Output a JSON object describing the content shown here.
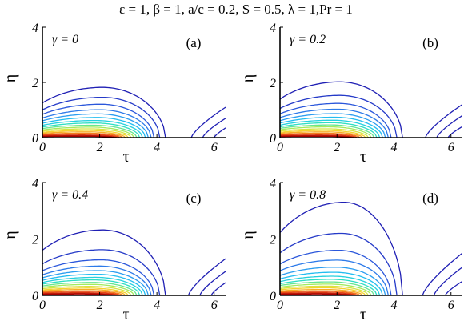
{
  "figure_title": "ε = 1, β = 1, a/c = 0.2, S = 0.5, λ = 1,Pr = 1",
  "colors": {
    "outer_contour": "#1f1fb4",
    "axis": "#000000",
    "colormap": [
      "#1f1fb4",
      "#2a4fd8",
      "#2f8ef0",
      "#20c8f0",
      "#30e0c0",
      "#a0ec60",
      "#f4e030",
      "#f89a20",
      "#e43c14",
      "#a00000"
    ]
  },
  "chart_data": [
    {
      "type": "contour",
      "panel_label": "(a)",
      "gamma_label": "γ = 0",
      "xlabel": "τ",
      "ylabel": "η",
      "xticks": [
        "0",
        "2",
        "4",
        "6"
      ],
      "yticks": [
        "0",
        "2",
        "4"
      ],
      "xlim": [
        0,
        6.4
      ],
      "ylim": [
        0,
        4
      ],
      "left_lobe": {
        "x_start": 0,
        "center_x": 2.1,
        "closing_x": [
          4.3,
          4.1,
          3.9,
          3.8,
          3.7,
          3.6,
          3.5,
          3.4,
          3.3,
          3.2,
          3.1,
          3.0,
          2.9,
          2.8,
          2.7,
          2.6,
          2.5
        ],
        "peak_height": [
          1.82,
          1.46,
          1.21,
          1.01,
          0.86,
          0.73,
          0.62,
          0.53,
          0.45,
          0.38,
          0.32,
          0.26,
          0.21,
          0.16,
          0.12,
          0.08,
          0.05
        ]
      },
      "right_lobe": {
        "x_start": [
          5.2,
          5.6,
          6.0
        ],
        "x_end": 6.4,
        "height_at_end": [
          1.1,
          0.7,
          0.35
        ]
      }
    },
    {
      "type": "contour",
      "panel_label": "(b)",
      "gamma_label": "γ = 0.2",
      "xlabel": "τ",
      "ylabel": "η",
      "xticks": [
        "0",
        "2",
        "4",
        "6"
      ],
      "yticks": [
        "0",
        "2",
        "4"
      ],
      "xlim": [
        0,
        6.4
      ],
      "ylim": [
        0,
        4
      ],
      "left_lobe": {
        "x_start": 0,
        "center_x": 2.1,
        "closing_x": [
          4.3,
          4.1,
          3.9,
          3.8,
          3.7,
          3.6,
          3.5,
          3.4,
          3.3,
          3.2,
          3.1,
          3.0,
          2.9,
          2.8,
          2.7,
          2.6,
          2.5
        ],
        "peak_height": [
          2.02,
          1.53,
          1.24,
          1.03,
          0.87,
          0.74,
          0.63,
          0.54,
          0.46,
          0.39,
          0.32,
          0.26,
          0.21,
          0.16,
          0.12,
          0.08,
          0.05
        ]
      },
      "right_lobe": {
        "x_start": [
          5.1,
          5.5,
          5.9
        ],
        "x_end": 6.4,
        "height_at_end": [
          1.2,
          0.8,
          0.4
        ]
      }
    },
    {
      "type": "contour",
      "panel_label": "(c)",
      "gamma_label": "γ = 0.4",
      "xlabel": "τ",
      "ylabel": "η",
      "xticks": [
        "0",
        "2",
        "4",
        "6"
      ],
      "yticks": [
        "0",
        "2",
        "4"
      ],
      "xlim": [
        0,
        6.4
      ],
      "ylim": [
        0,
        4
      ],
      "left_lobe": {
        "x_start": 0,
        "center_x": 2.1,
        "closing_x": [
          4.3,
          4.1,
          3.9,
          3.8,
          3.7,
          3.6,
          3.5,
          3.4,
          3.3,
          3.2,
          3.1,
          3.0,
          2.9,
          2.8,
          2.7,
          2.6,
          2.5
        ],
        "peak_height": [
          2.32,
          1.62,
          1.26,
          1.04,
          0.88,
          0.75,
          0.64,
          0.55,
          0.46,
          0.39,
          0.32,
          0.26,
          0.21,
          0.16,
          0.12,
          0.08,
          0.05
        ]
      },
      "right_lobe": {
        "x_start": [
          5.1,
          5.5,
          5.9
        ],
        "x_end": 6.4,
        "height_at_end": [
          1.3,
          0.85,
          0.45
        ]
      }
    },
    {
      "type": "contour",
      "panel_label": "(d)",
      "gamma_label": "γ = 0.8",
      "xlabel": "τ",
      "ylabel": "η",
      "xticks": [
        "0",
        "2",
        "4",
        "6"
      ],
      "yticks": [
        "0",
        "2",
        "4"
      ],
      "xlim": [
        0,
        6.4
      ],
      "ylim": [
        0,
        4
      ],
      "left_lobe": {
        "x_start": 0,
        "center_x": 2.3,
        "closing_x": [
          4.3,
          4.1,
          3.9,
          3.8,
          3.7,
          3.6,
          3.5,
          3.4,
          3.3,
          3.2,
          3.1,
          3.0,
          2.9,
          2.8,
          2.7,
          2.6,
          2.5
        ],
        "peak_height": [
          3.3,
          2.2,
          1.6,
          1.25,
          1.0,
          0.82,
          0.68,
          0.57,
          0.48,
          0.4,
          0.33,
          0.27,
          0.21,
          0.16,
          0.12,
          0.08,
          0.05
        ]
      },
      "right_lobe": {
        "x_start": [
          5.0,
          5.4,
          5.8
        ],
        "x_end": 6.4,
        "height_at_end": [
          1.5,
          1.0,
          0.5
        ]
      }
    }
  ]
}
